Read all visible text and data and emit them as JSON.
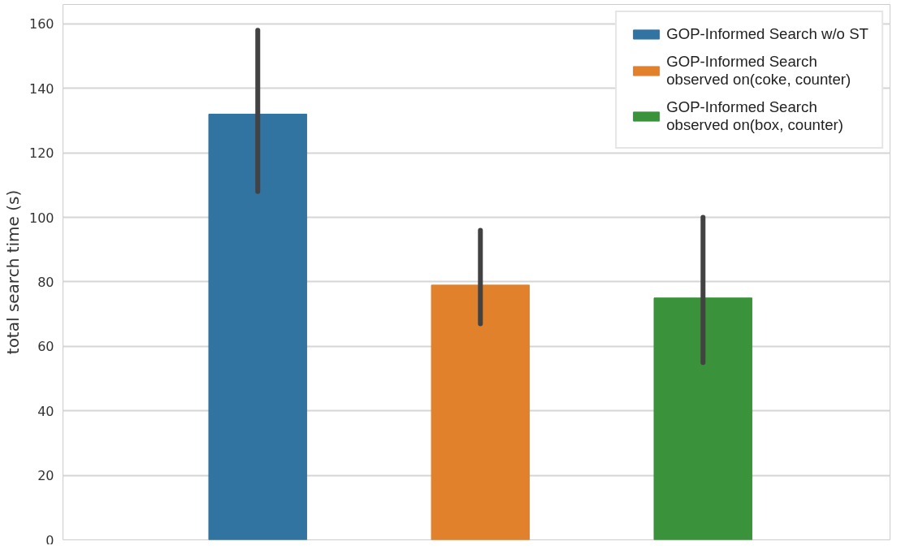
{
  "chart_data": {
    "type": "bar",
    "ylabel": "total search time (s)",
    "categories": [
      null,
      null,
      null
    ],
    "series": [
      {
        "name": "GOP-Informed Search w/o ST",
        "color": "#3274a1",
        "values": [
          132,
          null,
          null
        ],
        "errors": [
          [
            108,
            158
          ],
          null,
          null
        ]
      },
      {
        "name": "GOP-Informed Search\nobserved on(coke, counter)",
        "color": "#e1812c",
        "values": [
          null,
          79,
          null
        ],
        "errors": [
          null,
          [
            67,
            96
          ],
          null
        ]
      },
      {
        "name": "GOP-Informed Search\nobserved on(box, counter)",
        "color": "#3a923a",
        "values": [
          null,
          null,
          75
        ],
        "errors": [
          null,
          null,
          [
            55,
            100
          ]
        ]
      }
    ],
    "ylim": [
      0,
      166
    ],
    "yticks": [
      0,
      20,
      40,
      60,
      80,
      100,
      120,
      140,
      160
    ],
    "grid": "y",
    "legend": "top right"
  }
}
